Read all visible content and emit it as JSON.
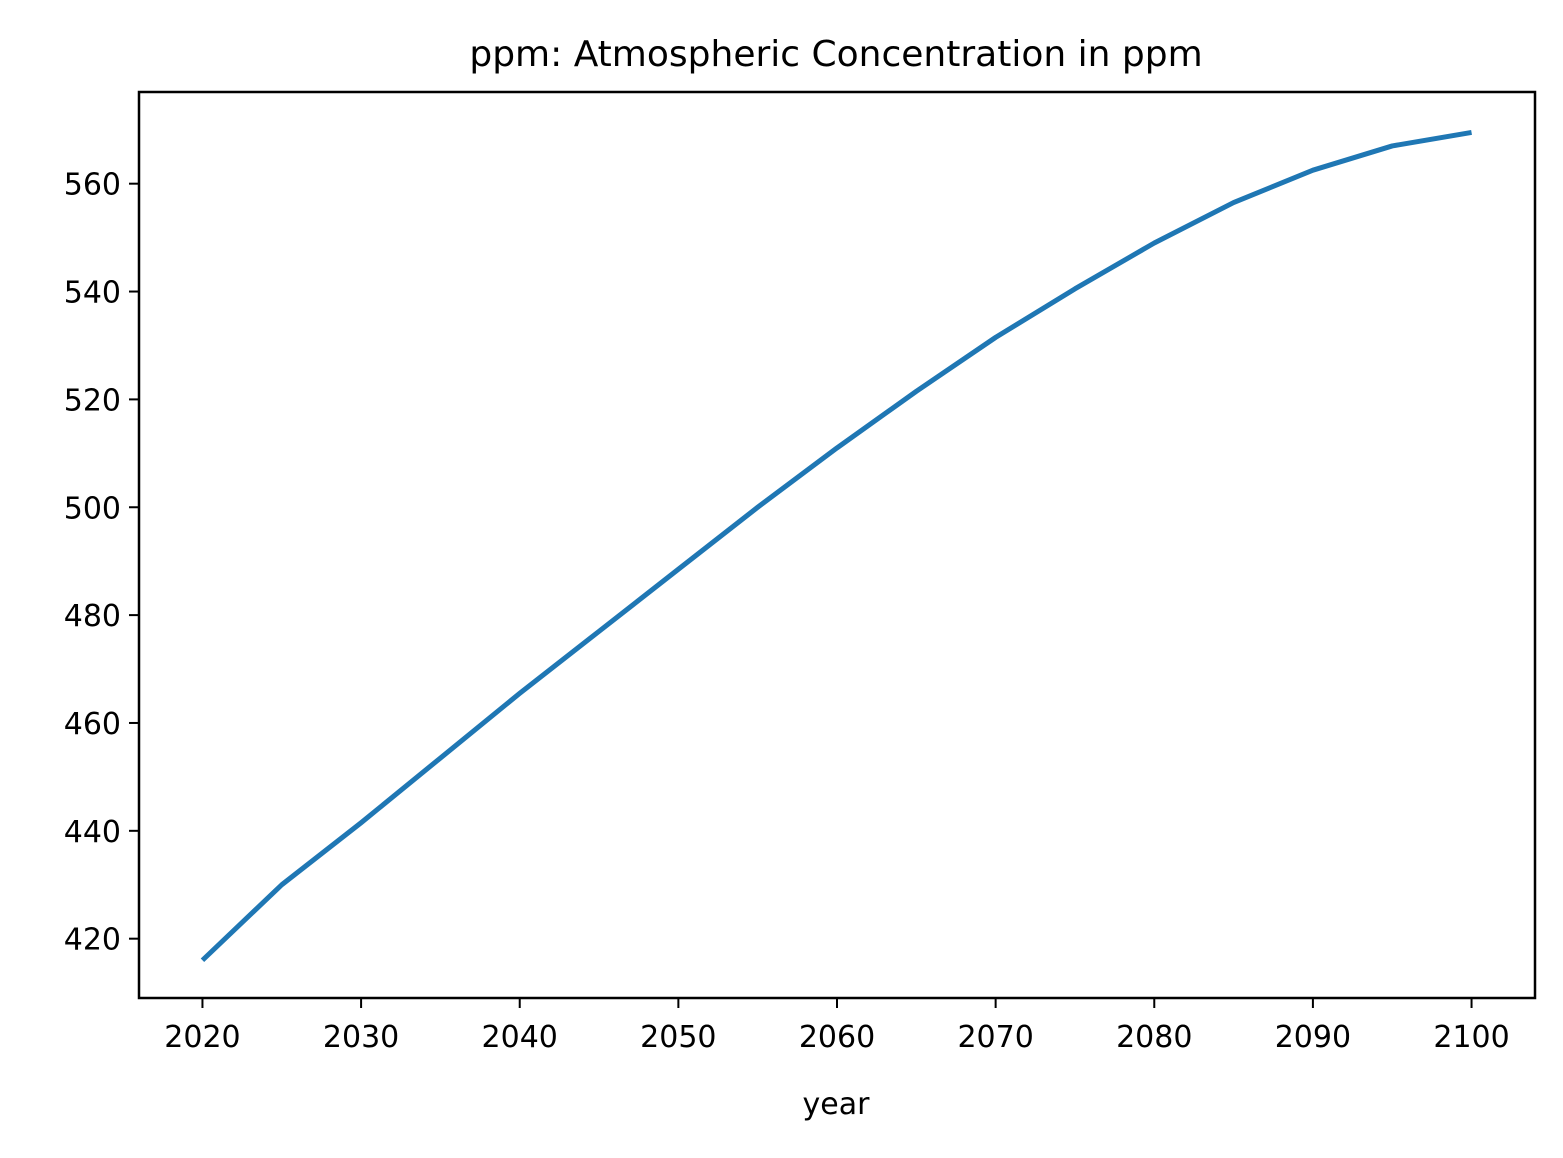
{
  "chart_data": {
    "type": "line",
    "title": "ppm: Atmospheric Concentration in ppm",
    "xlabel": "year",
    "ylabel": "",
    "xlim": [
      2016,
      2104
    ],
    "ylim": [
      409,
      577
    ],
    "x_ticks": [
      2020,
      2030,
      2040,
      2050,
      2060,
      2070,
      2080,
      2090,
      2100
    ],
    "y_ticks": [
      420,
      440,
      460,
      480,
      500,
      520,
      540,
      560
    ],
    "grid": false,
    "legend": "none",
    "series": [
      {
        "color": "#1f77b4",
        "x": [
          2020,
          2025,
          2030,
          2035,
          2040,
          2045,
          2050,
          2055,
          2060,
          2065,
          2070,
          2075,
          2080,
          2085,
          2090,
          2095,
          2100
        ],
        "values": [
          416,
          430,
          441.5,
          453.5,
          465.5,
          477,
          488.5,
          500,
          511,
          521.5,
          531.5,
          540.5,
          549,
          556.5,
          562.5,
          567,
          569.5
        ]
      }
    ]
  }
}
